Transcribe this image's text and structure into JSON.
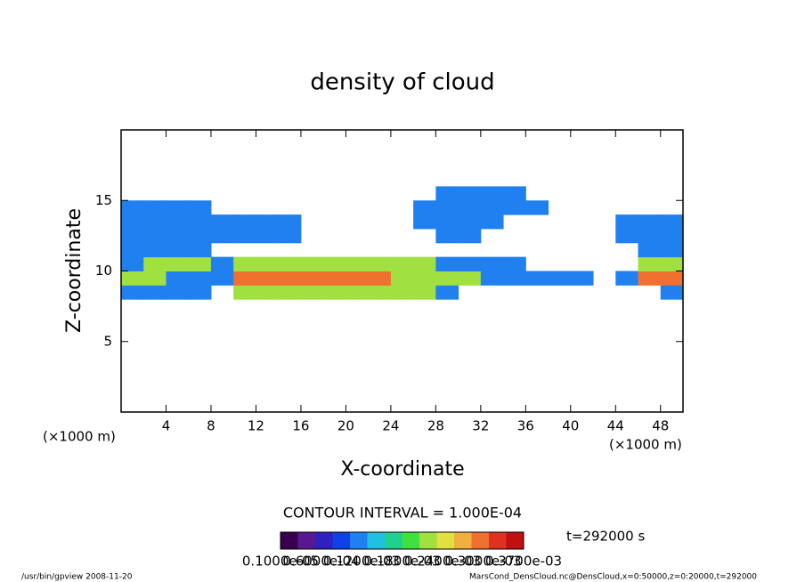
{
  "chart_data": {
    "type": "heatmap",
    "title": "density of cloud",
    "x_label": "X-coordinate",
    "y_label": "Z-coordinate",
    "x_unit_left": "(×1000 m)",
    "x_unit_right": "(×1000 m)",
    "xlim": [
      0,
      50
    ],
    "xticks": [
      4,
      8,
      12,
      16,
      20,
      24,
      28,
      32,
      36,
      40,
      44,
      48
    ],
    "ylim": [
      0,
      20
    ],
    "yticks": [
      5,
      10,
      15
    ],
    "x": [
      1,
      3,
      5,
      7,
      9,
      11,
      13,
      15,
      17,
      19,
      21,
      23,
      25,
      27,
      29,
      31,
      33,
      35,
      37,
      39,
      41,
      43,
      45,
      47,
      49
    ],
    "y": [
      8.5,
      9.5,
      10.5,
      11.5,
      12.5,
      13.5,
      14.5,
      15.5
    ],
    "z": [
      [
        0.0001,
        0.0001,
        0.0001,
        0.0001,
        null,
        0.0002,
        0.0002,
        0.0002,
        0.0002,
        0.0002,
        0.0002,
        0.0002,
        0.0002,
        0.0002,
        0.0001,
        null,
        null,
        null,
        null,
        null,
        null,
        null,
        null,
        null,
        0.0001
      ],
      [
        0.0002,
        0.0002,
        0.0001,
        0.0001,
        0.0001,
        0.0003,
        0.0003,
        0.0003,
        0.0003,
        0.0003,
        0.0003,
        0.0003,
        0.0002,
        0.0002,
        0.0002,
        0.0002,
        0.0001,
        0.0001,
        0.0001,
        0.0001,
        0.0001,
        null,
        0.0001,
        0.0003,
        0.0003
      ],
      [
        0.0001,
        0.0002,
        0.0002,
        0.0002,
        0.0001,
        0.0002,
        0.0002,
        0.0002,
        0.0002,
        0.0002,
        0.0002,
        0.0002,
        0.0002,
        0.0002,
        0.0001,
        0.0001,
        0.0001,
        0.0001,
        null,
        null,
        null,
        null,
        null,
        0.0002,
        0.0002
      ],
      [
        0.0001,
        0.0001,
        0.0001,
        0.0001,
        null,
        null,
        null,
        null,
        null,
        null,
        null,
        null,
        null,
        null,
        null,
        null,
        null,
        null,
        null,
        null,
        null,
        null,
        null,
        0.0001,
        0.0001
      ],
      [
        0.0001,
        0.0001,
        0.0001,
        0.0001,
        0.0001,
        0.0001,
        0.0001,
        0.0001,
        null,
        null,
        null,
        null,
        null,
        null,
        0.0001,
        0.0001,
        null,
        null,
        null,
        null,
        null,
        null,
        0.0001,
        0.0001,
        0.0001
      ],
      [
        0.0001,
        0.0001,
        0.0001,
        0.0001,
        0.0001,
        0.0001,
        0.0001,
        0.0001,
        null,
        null,
        null,
        null,
        null,
        0.0001,
        0.0001,
        0.0001,
        0.0001,
        null,
        null,
        null,
        null,
        null,
        0.0001,
        0.0001,
        0.0001
      ],
      [
        0.0001,
        0.0001,
        0.0001,
        0.0001,
        null,
        null,
        null,
        null,
        null,
        null,
        null,
        null,
        null,
        0.0001,
        0.0001,
        0.0001,
        0.0001,
        0.0001,
        0.0001,
        null,
        null,
        null,
        null,
        null,
        null
      ],
      [
        null,
        null,
        null,
        null,
        null,
        null,
        null,
        null,
        null,
        null,
        null,
        null,
        null,
        null,
        0.0001,
        0.0001,
        0.0001,
        0.0001,
        null,
        null,
        null,
        null,
        null,
        null,
        null
      ]
    ],
    "contour_interval": "CONTOUR INTERVAL = 1.000E-04",
    "time_label": "t=292000 s",
    "colorbar": {
      "colors": [
        "#3a0050",
        "#5a1890",
        "#3020c0",
        "#1040e8",
        "#2080f0",
        "#20c0e0",
        "#20d090",
        "#40e040",
        "#a0e040",
        "#e0e040",
        "#f0b040",
        "#f07030",
        "#e03020",
        "#c01010"
      ],
      "labels": [
        "0.1000e-05",
        "0.6000e-04",
        "0.1200e-03",
        "0.1800e-03",
        "0.2400e-03",
        "0.3000e-03",
        "0.3700e-03"
      ]
    },
    "footer_left": "/usr/bin/gpview  2008-11-20",
    "footer_right": "MarsCond_DensCloud.nc@DensCloud,x=0:50000,z=0:20000,t=292000"
  }
}
